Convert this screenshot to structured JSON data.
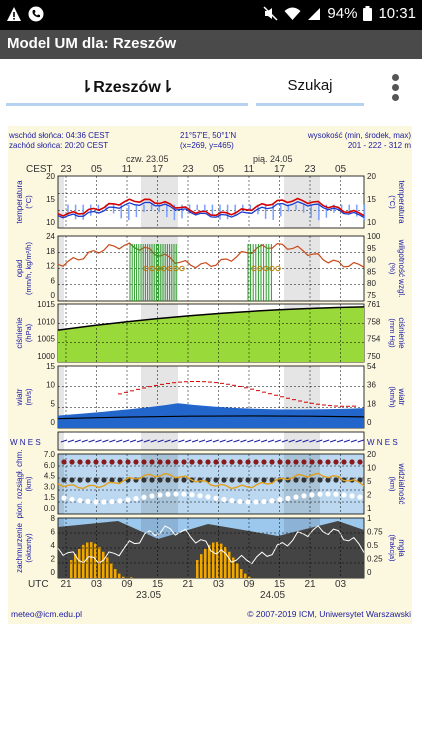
{
  "status": {
    "battery": "94%",
    "time": "10:31"
  },
  "app": {
    "title": "Model UM dla: Rzeszów"
  },
  "tabs": {
    "city": "⇂Rzeszów⇂",
    "search": "Szukaj"
  },
  "meteo": {
    "sunrise": "wschód słońca: 04:36 CEST",
    "sunset": "zachód słońca: 20:20 CEST",
    "coords": "21°57'E, 50°1'N",
    "grid": "(x=269, y=465)",
    "alt_label": "wysokość (min, środek, max)",
    "alt_value": "201 - 222 - 312 m",
    "tz": "CEST",
    "utc": "UTC",
    "day1": "czw. 23.05",
    "day2": "pią. 24.05",
    "bottom_day1": "23.05",
    "bottom_day2": "24.05",
    "cest_hours": [
      "23",
      "05",
      "11",
      "17",
      "23",
      "05",
      "11",
      "17",
      "23",
      "05"
    ],
    "utc_hours": [
      "21",
      "03",
      "09",
      "15",
      "21",
      "03",
      "09",
      "15",
      "21",
      "03"
    ],
    "panels": {
      "temp": {
        "left": "temperatura",
        "left2": "(°C)",
        "right": "temperatura",
        "right2": "(°C)",
        "yl": [
          "20",
          "15",
          "10"
        ],
        "yr": [
          "20",
          "15",
          "10"
        ]
      },
      "precip": {
        "left": "opad",
        "left2": "(mm/h, kg/m²/h)",
        "right": "wilgotność wzgl.",
        "right2": "(%)",
        "yl": [
          "24",
          "18",
          "12",
          "6",
          "0"
        ],
        "yr": [
          "100",
          "95",
          "90",
          "85",
          "80",
          "75"
        ]
      },
      "press": {
        "left": "ciśnienie",
        "left2": "(hPa)",
        "right": "ciśnienie",
        "right2": "(mm Hg)",
        "yl": [
          "1015",
          "1010",
          "1005",
          "1000"
        ],
        "yr": [
          "761",
          "758",
          "754",
          "750"
        ]
      },
      "wind": {
        "left": "wiatr",
        "left2": "(m/s)",
        "right": "wiatr",
        "right2": "(km/h)",
        "yl": [
          "15",
          "10",
          "5",
          "0"
        ],
        "yr": [
          "54",
          "36",
          "18",
          "0"
        ]
      },
      "vis": {
        "left": "pion. rozsiągł. chm.",
        "left2": "(km)",
        "right": "widzialność",
        "right2": "(km)",
        "yl": [
          "7.0",
          "6.0",
          "4.5",
          "3.0",
          "1.5",
          "0.0"
        ],
        "yr": [
          "20",
          "10",
          "5",
          "2",
          "1"
        ]
      },
      "cloud": {
        "left": "zachmurzenie",
        "left2": "(oktanty)",
        "right": "mgła",
        "right2": "(frakcja)",
        "yl": [
          "8",
          "6",
          "4",
          "2",
          "0"
        ],
        "yr": [
          "1",
          "0.75",
          "0.5",
          "0.25",
          "0"
        ]
      }
    },
    "wind_dir": {
      "label_left": "W N E S",
      "label_right": "W N E S"
    },
    "footer_left": "meteo@icm.edu.pl",
    "footer_right": "© 2007-2019 ICM, Uniwersytet Warszawski"
  },
  "colors": {
    "appbar": "#4a4a4a",
    "tab_underline": "#b5d3f0",
    "chart_bg": "#fcf8e0",
    "label_blue": "#1a1aa0",
    "temp_red": "#d40000",
    "temp_blue": "#1a3ccc"
  }
}
